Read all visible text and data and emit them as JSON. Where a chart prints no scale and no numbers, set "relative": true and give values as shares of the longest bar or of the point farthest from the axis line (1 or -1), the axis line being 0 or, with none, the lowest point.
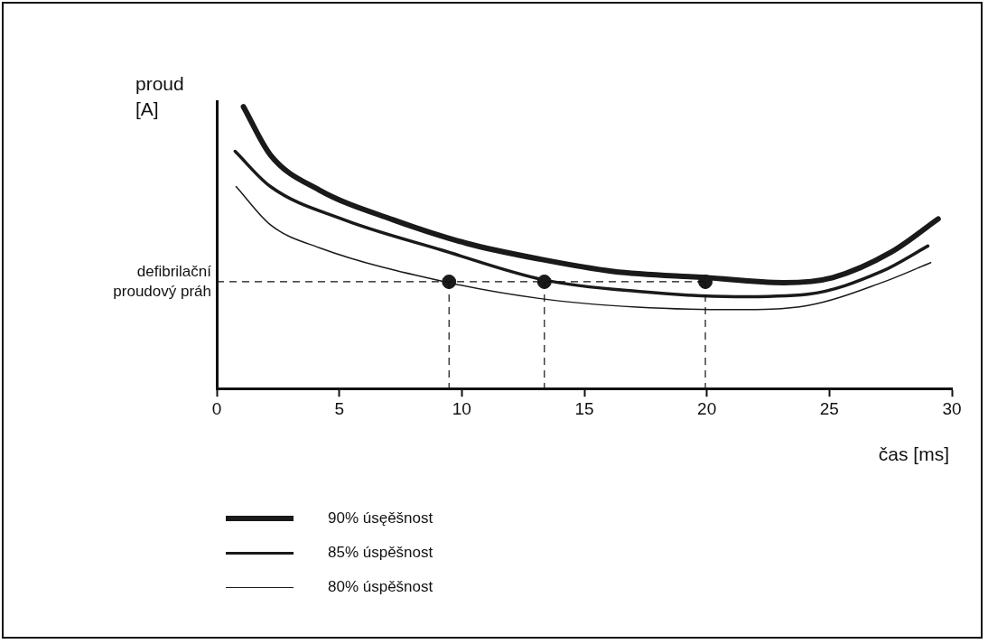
{
  "chart_data": {
    "type": "line",
    "relative": true,
    "xlabel": "čas [ms]",
    "ylabel": "proud [A]",
    "xlim": [
      0,
      30
    ],
    "xticks": [
      0,
      5,
      10,
      15,
      20,
      25,
      30
    ],
    "legend": "bottom",
    "marker": "none",
    "line_style": "solid",
    "grid": false,
    "series": [
      {
        "name": "90% úsęěšnost",
        "color": "#1a1a1a",
        "x": [
          1.09,
          2.19,
          4.18,
          7.2,
          10.18,
          13.15,
          16.17,
          19.94,
          23.14,
          25.14,
          27.52,
          29.44
        ],
        "values": [
          1.0,
          0.829,
          0.705,
          0.599,
          0.516,
          0.46,
          0.416,
          0.394,
          0.376,
          0.394,
          0.484,
          0.602
        ]
      },
      {
        "name": "85% úspěšnost",
        "color": "#1a1a1a",
        "x": [
          0.75,
          2.19,
          5.2,
          9.2,
          13.38,
          17.15,
          21.15,
          24.12,
          27.14,
          29.02
        ],
        "values": [
          0.842,
          0.717,
          0.599,
          0.491,
          0.385,
          0.345,
          0.326,
          0.335,
          0.416,
          0.506
        ]
      },
      {
        "name": "80% úspěšnost",
        "color": "#1a1a1a",
        "x": [
          0.79,
          2.19,
          4.18,
          9.46,
          13.15,
          17.15,
          21.15,
          24.12,
          27.14,
          29.14
        ],
        "values": [
          0.717,
          0.581,
          0.5,
          0.376,
          0.32,
          0.289,
          0.28,
          0.295,
          0.376,
          0.447
        ]
      },
      {
        "type": "scatter",
        "marker": "circle",
        "color": "#1a1a1a",
        "x": [
          9.48,
          13.37,
          19.94
        ],
        "values": [
          0.379,
          0.379,
          0.379
        ]
      }
    ],
    "ref_lines": [
      {
        "axis": "y",
        "value": 0.379,
        "label": "defibrilační proudový práh",
        "line_style": "dashed"
      },
      {
        "axis": "x",
        "value": 9.48,
        "line_style": "dashed"
      },
      {
        "axis": "x",
        "value": 13.37,
        "line_style": "dashed"
      },
      {
        "axis": "x",
        "value": 19.94,
        "line_style": "dashed"
      }
    ]
  }
}
